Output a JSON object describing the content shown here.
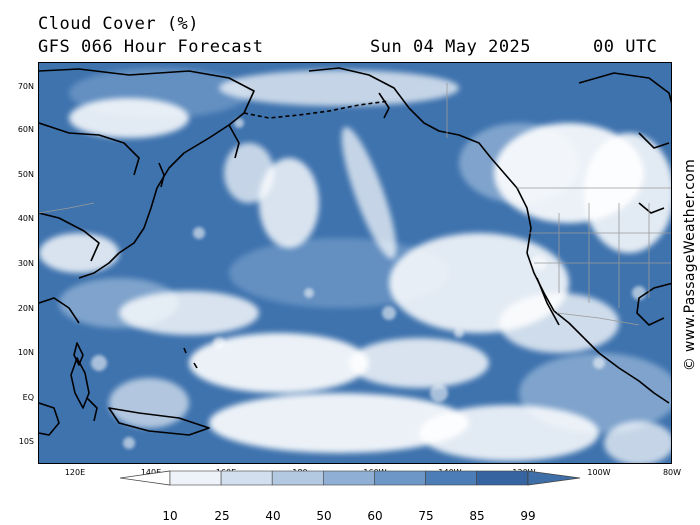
{
  "header": {
    "title": "Cloud Cover (%)",
    "subtitle": "GFS 066 Hour Forecast",
    "date": "Sun 04 May 2025",
    "time": "00 UTC"
  },
  "copyright": "© www.PassageWeather.com",
  "latitude_labels": [
    "70N",
    "60N",
    "50N",
    "40N",
    "30N",
    "20N",
    "10N",
    "EQ",
    "10S"
  ],
  "longitude_labels": [
    "120E",
    "140E",
    "160E",
    "180",
    "160W",
    "140W",
    "120W",
    "100W",
    "80W"
  ],
  "legend": {
    "values": [
      "10",
      "25",
      "40",
      "50",
      "60",
      "75",
      "85",
      "99"
    ],
    "colors": [
      "#ffffff",
      "#eef3f9",
      "#d2dfee",
      "#b3c9e2",
      "#8fb0d4",
      "#6d97c6",
      "#4c7db6",
      "#3564a0"
    ],
    "under_color": "#ffffff",
    "over_color": "#3f6fa8"
  },
  "colors": {
    "ocean_cloud_dark": "#3f73ae",
    "cloud_light": "#ffffff",
    "coastline": "#000000",
    "land_border": "#9a9a9a"
  }
}
